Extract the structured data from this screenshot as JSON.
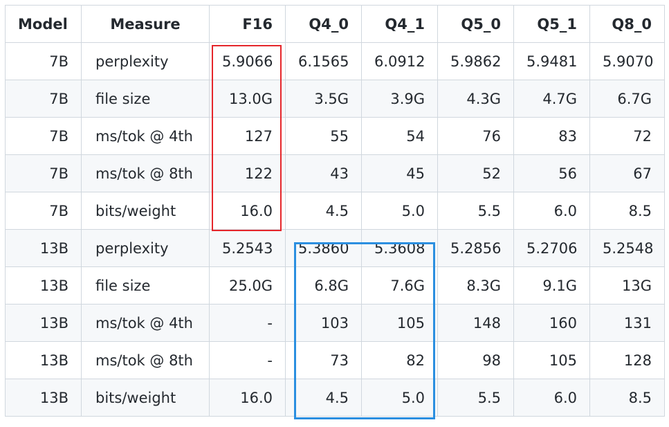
{
  "table": {
    "headers": [
      "Model",
      "Measure",
      "F16",
      "Q4_0",
      "Q4_1",
      "Q5_0",
      "Q5_1",
      "Q8_0"
    ],
    "rows": [
      [
        "7B",
        "perplexity",
        "5.9066",
        "6.1565",
        "6.0912",
        "5.9862",
        "5.9481",
        "5.9070"
      ],
      [
        "7B",
        "file size",
        "13.0G",
        "3.5G",
        "3.9G",
        "4.3G",
        "4.7G",
        "6.7G"
      ],
      [
        "7B",
        "ms/tok @ 4th",
        "127",
        "55",
        "54",
        "76",
        "83",
        "72"
      ],
      [
        "7B",
        "ms/tok @ 8th",
        "122",
        "43",
        "45",
        "52",
        "56",
        "67"
      ],
      [
        "7B",
        "bits/weight",
        "16.0",
        "4.5",
        "5.0",
        "5.5",
        "6.0",
        "8.5"
      ],
      [
        "13B",
        "perplexity",
        "5.2543",
        "5.3860",
        "5.3608",
        "5.2856",
        "5.2706",
        "5.2548"
      ],
      [
        "13B",
        "file size",
        "25.0G",
        "6.8G",
        "7.6G",
        "8.3G",
        "9.1G",
        "13G"
      ],
      [
        "13B",
        "ms/tok @ 4th",
        "-",
        "103",
        "105",
        "148",
        "160",
        "131"
      ],
      [
        "13B",
        "ms/tok @ 8th",
        "-",
        "73",
        "82",
        "98",
        "105",
        "128"
      ],
      [
        "13B",
        "bits/weight",
        "16.0",
        "4.5",
        "5.0",
        "5.5",
        "6.0",
        "8.5"
      ]
    ]
  },
  "highlights": {
    "red_color": "#e5262b",
    "blue_color": "#2b8fe0"
  }
}
